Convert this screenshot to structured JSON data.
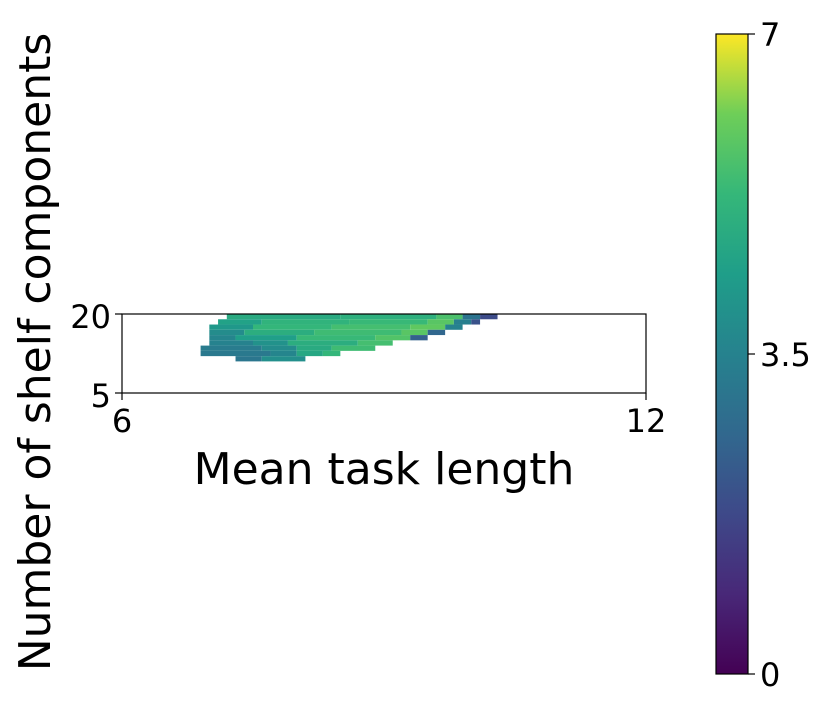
{
  "chart_data": {
    "type": "heatmap",
    "title": "",
    "xlabel": "Mean task length",
    "ylabel": "Number of shelf components",
    "xlim": [
      6,
      12
    ],
    "ylim": [
      5,
      20
    ],
    "x_ticks": [
      "6",
      "12"
    ],
    "y_ticks": [
      "5",
      "20"
    ],
    "colormap": "viridis",
    "colorbar": {
      "range": [
        0,
        7
      ],
      "ticks": [
        "0",
        "3.5",
        "7"
      ]
    },
    "grid": false,
    "cells_note_columns": "each row lists [x_start, x_end, value] runs",
    "cell_width_x": 0.1,
    "cell_height_y": 1,
    "rows": [
      {
        "y": 19.5,
        "runs": [
          [
            7.2,
            8.5,
            4.8
          ],
          [
            8.5,
            9.6,
            5.0
          ],
          [
            9.6,
            9.9,
            5.6
          ],
          [
            9.9,
            10.1,
            3.0
          ],
          [
            10.1,
            10.3,
            1.8
          ]
        ]
      },
      {
        "y": 18.5,
        "runs": [
          [
            7.1,
            7.6,
            4.5
          ],
          [
            7.6,
            8.6,
            5.1
          ],
          [
            8.6,
            9.5,
            5.3
          ],
          [
            9.5,
            9.8,
            5.8
          ],
          [
            9.8,
            10.0,
            3.4
          ],
          [
            10.0,
            10.1,
            2.0
          ]
        ]
      },
      {
        "y": 17.5,
        "runs": [
          [
            7.0,
            7.5,
            4.2
          ],
          [
            7.5,
            8.4,
            5.2
          ],
          [
            8.4,
            9.3,
            5.5
          ],
          [
            9.3,
            9.7,
            5.9
          ],
          [
            9.7,
            9.9,
            3.5
          ]
        ]
      },
      {
        "y": 16.5,
        "runs": [
          [
            7.0,
            7.4,
            3.8
          ],
          [
            7.4,
            8.2,
            4.9
          ],
          [
            8.2,
            9.2,
            5.4
          ],
          [
            9.2,
            9.5,
            5.8
          ],
          [
            9.5,
            9.7,
            2.6
          ]
        ]
      },
      {
        "y": 15.5,
        "runs": [
          [
            7.0,
            7.3,
            3.6
          ],
          [
            7.3,
            8.0,
            4.4
          ],
          [
            8.0,
            8.9,
            5.3
          ],
          [
            8.9,
            9.3,
            5.7
          ],
          [
            9.3,
            9.5,
            2.4
          ]
        ]
      },
      {
        "y": 14.5,
        "runs": [
          [
            7.0,
            7.5,
            3.5
          ],
          [
            7.5,
            7.9,
            4.0
          ],
          [
            7.9,
            8.7,
            4.9
          ],
          [
            8.7,
            9.1,
            5.5
          ]
        ]
      },
      {
        "y": 13.5,
        "runs": [
          [
            6.9,
            7.6,
            3.3
          ],
          [
            7.6,
            8.0,
            3.8
          ],
          [
            8.0,
            8.4,
            4.8
          ],
          [
            8.4,
            8.9,
            5.4
          ]
        ]
      },
      {
        "y": 12.5,
        "runs": [
          [
            6.9,
            7.7,
            3.2
          ],
          [
            7.7,
            8.0,
            3.6
          ],
          [
            8.0,
            8.3,
            4.7
          ],
          [
            8.3,
            8.5,
            5.2
          ]
        ]
      },
      {
        "y": 11.5,
        "runs": [
          [
            7.3,
            7.6,
            3.1
          ],
          [
            7.6,
            8.1,
            3.9
          ]
        ]
      }
    ]
  }
}
